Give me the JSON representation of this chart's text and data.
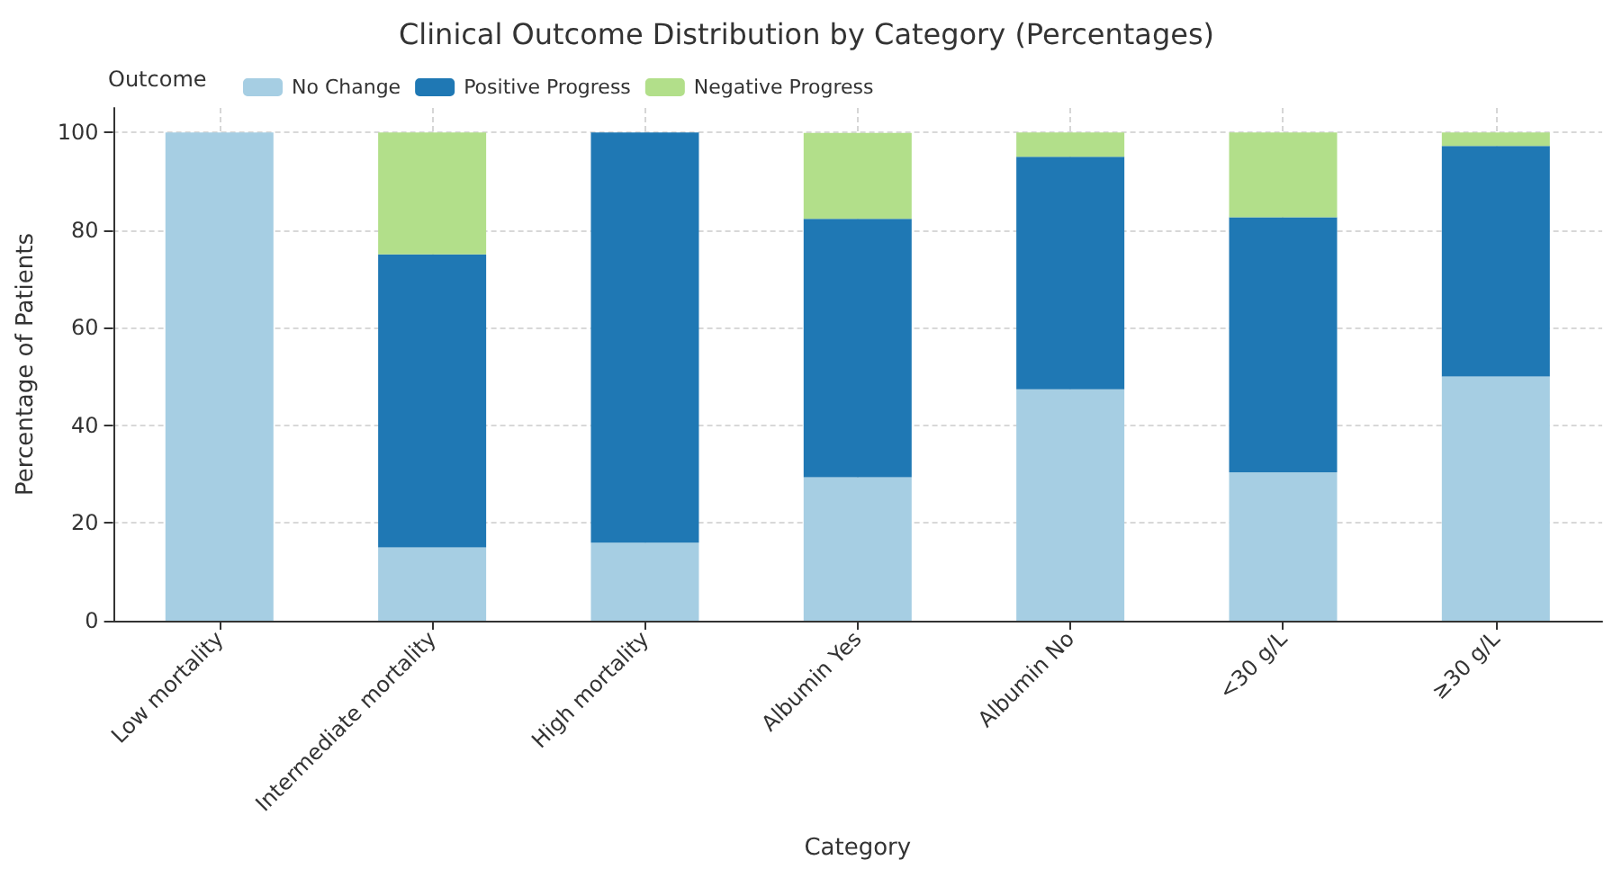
{
  "chart_data": {
    "type": "bar",
    "title": "Clinical Outcome Distribution by Category (Percentages)",
    "xlabel": "Category",
    "ylabel": "Percentage of Patients",
    "legend_title": "Outcome",
    "categories": [
      "Low mortality",
      "Intermediate mortality",
      "High mortality",
      "Albumin Yes",
      "Albumin No",
      "<30 g/L",
      "≥30 g/L"
    ],
    "series": [
      {
        "name": "No Change",
        "color": "#a6cee3",
        "values": [
          100,
          15,
          16,
          29.4,
          47.4,
          30.4,
          50
        ]
      },
      {
        "name": "Positive Progress",
        "color": "#1f78b4",
        "values": [
          0,
          60,
          84,
          52.9,
          47.6,
          52.2,
          47.2
        ]
      },
      {
        "name": "Negative Progress",
        "color": "#b2df8a",
        "values": [
          0,
          25,
          0,
          17.6,
          5,
          17.4,
          2.8
        ]
      }
    ],
    "stacked": true,
    "ylim": [
      0,
      105
    ],
    "yticks": [
      0,
      20,
      40,
      60,
      80,
      100
    ],
    "grid": true,
    "legend": "top left"
  }
}
